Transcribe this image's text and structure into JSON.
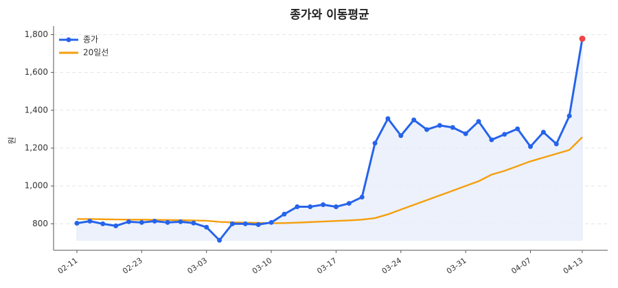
{
  "chart_data": {
    "type": "line",
    "title": "종가와 이동평균",
    "y_label": "원",
    "categories": [
      "02-11",
      null,
      null,
      null,
      null,
      "02-23",
      null,
      null,
      null,
      null,
      "03-03",
      null,
      null,
      null,
      null,
      "03-10",
      null,
      null,
      null,
      null,
      "03-17",
      null,
      null,
      null,
      null,
      "03-24",
      null,
      null,
      null,
      null,
      "03-31",
      null,
      null,
      null,
      null,
      "04-07",
      null,
      null,
      null,
      "04-13"
    ],
    "series": [
      {
        "name": "종가",
        "color": "#2563eb",
        "markers": true,
        "fill": "#e8eefb",
        "highlight_last": "#ef4444",
        "values": [
          803,
          814,
          800,
          789,
          811,
          807,
          814,
          807,
          811,
          804,
          782,
          713,
          800,
          800,
          796,
          807,
          851,
          890,
          890,
          901,
          890,
          908,
          941,
          1226,
          1356,
          1266,
          1349,
          1298,
          1320,
          1309,
          1276,
          1341,
          1244,
          1273,
          1302,
          1208,
          1284,
          1222,
          1370,
          1778
        ]
      },
      {
        "name": "20일선",
        "color": "#f59e0b",
        "markers": false,
        "values": [
          825,
          825,
          824,
          823,
          822,
          822,
          821,
          820,
          819,
          818,
          816,
          810,
          808,
          806,
          805,
          803,
          804,
          806,
          809,
          812,
          815,
          818,
          822,
          830,
          850,
          875,
          900,
          925,
          950,
          975,
          1000,
          1025,
          1060,
          1080,
          1105,
          1130,
          1150,
          1170,
          1190,
          1258
        ]
      }
    ],
    "ylim": [
      660,
      1845
    ],
    "yticks": [
      800,
      {
        "value": 1000,
        "label": "1,000"
      },
      {
        "value": 1200,
        "label": "1,200"
      },
      {
        "value": 1400,
        "label": "1,400"
      },
      {
        "value": 1600,
        "label": "1,600"
      },
      {
        "value": 1800,
        "label": "1,800"
      }
    ],
    "grid": true,
    "legend": "upper left"
  }
}
